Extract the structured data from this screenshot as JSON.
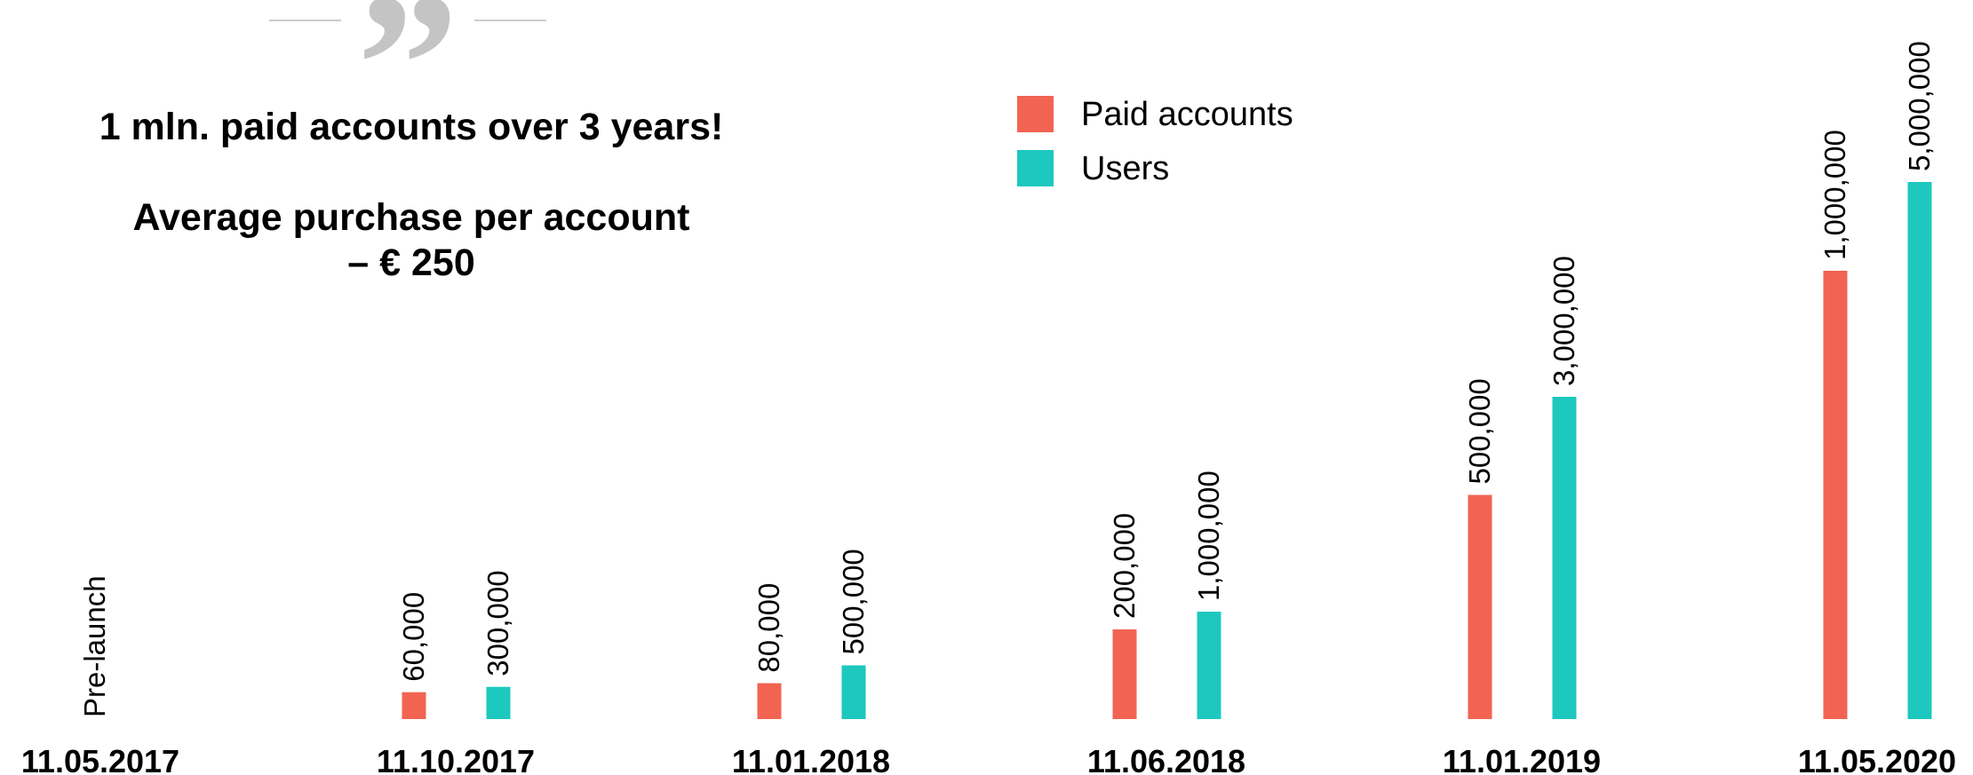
{
  "chart_data": {
    "type": "bar",
    "title": "1 mln. paid accounts over 3 years!",
    "subtitle": [
      "Average purchase per account",
      "– € 250"
    ],
    "annotation": "Pre-launch",
    "categories": [
      "11.05.2017",
      "11.10.2017",
      "11.01.2018",
      "11.06.2018",
      "11.01.2019",
      "11.05.2020"
    ],
    "series": [
      {
        "name": "Paid accounts",
        "color": "#f26451",
        "values": [
          null,
          60000,
          80000,
          200000,
          500000,
          1000000
        ],
        "value_labels": [
          null,
          "60,000",
          "80,000",
          "200,000",
          "500,000",
          "1,000,000"
        ]
      },
      {
        "name": "Users",
        "color": "#1dc8bf",
        "values": [
          null,
          300000,
          500000,
          1000000,
          3000000,
          5000000
        ],
        "value_labels": [
          null,
          "300,000",
          "500,000",
          "1,000,000",
          "3,000,000",
          "5,000,000"
        ]
      }
    ]
  }
}
